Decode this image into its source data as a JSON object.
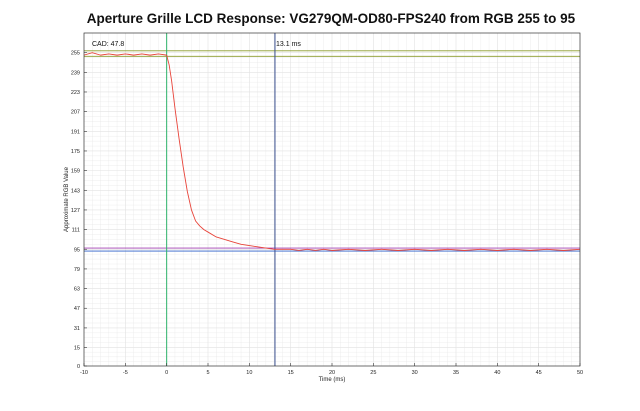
{
  "chart_data": {
    "type": "line",
    "title": "Aperture Grille LCD Response: VG279QM-OD80-FPS240 from RGB 255 to 95",
    "xlabel": "Time (ms)",
    "ylabel": "Approximate RGB Value",
    "xlim": [
      -10,
      50
    ],
    "ylim": [
      0,
      271
    ],
    "x_ticks": [
      -10,
      -5,
      0,
      5,
      10,
      15,
      20,
      25,
      30,
      35,
      40,
      45,
      50
    ],
    "y_ticks": [
      0,
      15,
      31,
      47,
      63,
      79,
      95,
      111,
      127,
      143,
      159,
      175,
      191,
      207,
      223,
      239,
      255
    ],
    "grid": true,
    "annotations": {
      "cad_label": "CAD: 47.8",
      "time_label": "13.1 ms"
    },
    "reference_lines": {
      "start_vertical_x": 0,
      "end_vertical_x": 13.1,
      "upper_horizontals_y": [
        256.5,
        252
      ],
      "lower_horizontals_y": [
        96,
        93.5
      ]
    },
    "colors": {
      "response": "#e8443a",
      "start_vertical": "#2db36a",
      "end_vertical": "#3a4f8f",
      "upper_horizontal": "#8a9a2a",
      "lower_horizontal_a": "#a23fb0",
      "lower_horizontal_b": "#2f62c8",
      "grid": "#e2e2e2"
    },
    "series": [
      {
        "x": [
          -10,
          -9,
          -8,
          -7,
          -6,
          -5,
          -4,
          -3,
          -2,
          -1,
          0,
          0.3,
          0.6,
          1,
          1.5,
          2,
          2.5,
          3,
          3.5,
          4,
          4.5,
          5,
          6,
          7,
          8,
          9,
          10,
          11,
          12,
          13,
          14,
          15,
          16,
          17,
          18,
          19,
          20,
          22,
          24,
          26,
          28,
          30,
          32,
          34,
          36,
          38,
          40,
          42,
          44,
          46,
          48,
          50
        ],
        "y": [
          253,
          255,
          253,
          254,
          253,
          254,
          253,
          254,
          253,
          254,
          253,
          245,
          232,
          210,
          185,
          162,
          142,
          127,
          118,
          114,
          111,
          109,
          105,
          103,
          101,
          99,
          98,
          97,
          96,
          95,
          95,
          95,
          94,
          95,
          94,
          95,
          94,
          95,
          94,
          95,
          94,
          95,
          94,
          95,
          94,
          95,
          94,
          95,
          94,
          95,
          94,
          95
        ]
      }
    ]
  }
}
